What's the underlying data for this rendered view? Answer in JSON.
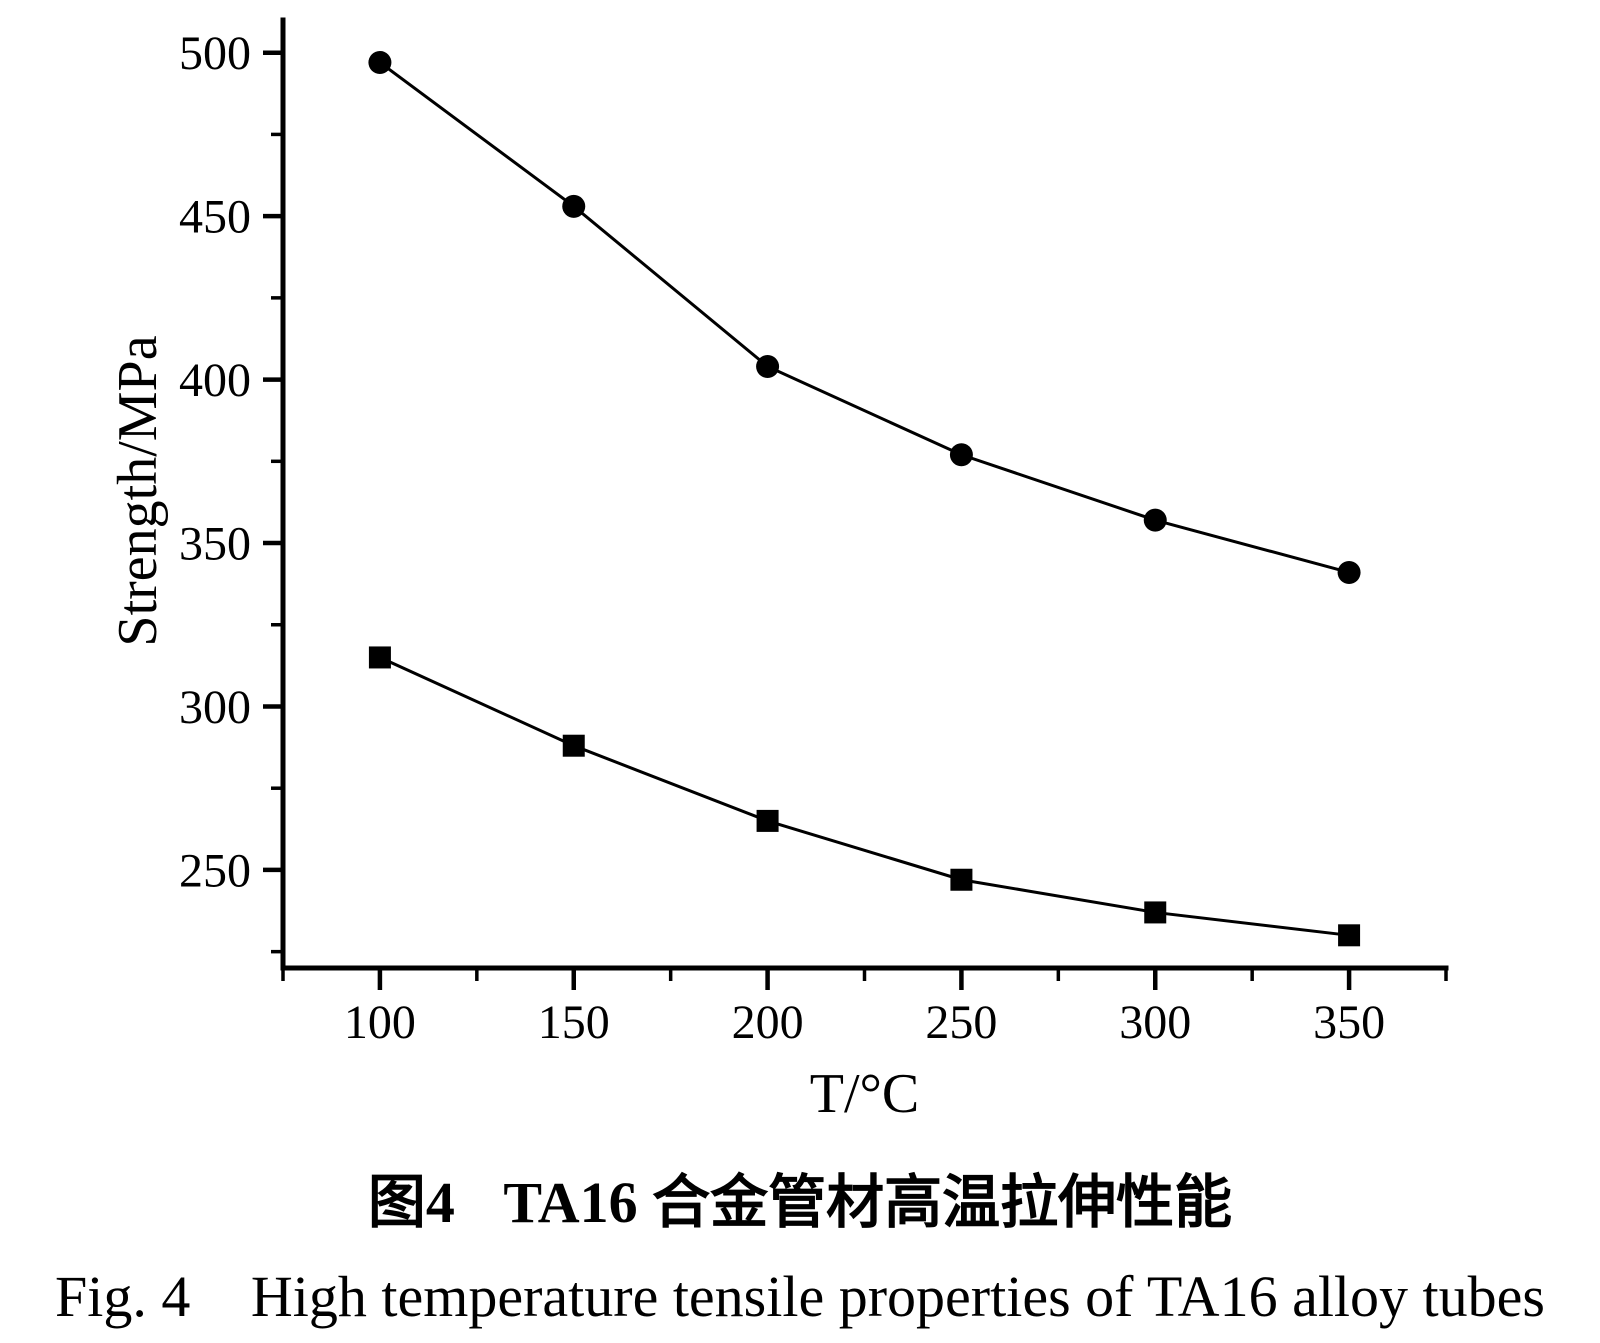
{
  "page": {
    "background": "#ffffff",
    "ink_color": "#000000"
  },
  "chart_data": {
    "type": "line",
    "title": "",
    "xlabel": "T/°C",
    "ylabel": "Strength/MPa",
    "x": [
      100,
      150,
      200,
      250,
      300,
      350
    ],
    "series": [
      {
        "marker": "circle",
        "values": [
          497,
          453,
          404,
          377,
          357,
          341
        ]
      },
      {
        "marker": "square",
        "values": [
          315,
          288,
          265,
          247,
          237,
          230
        ]
      }
    ],
    "xlim": [
      75,
      375
    ],
    "ylim": [
      220,
      510
    ],
    "x_major_ticks": [
      100,
      150,
      200,
      250,
      300,
      350
    ],
    "y_major_ticks": [
      250,
      300,
      350,
      400,
      450,
      500
    ],
    "minor_tick_step": 25,
    "grid": false,
    "legend": "none",
    "line_color": "#000000",
    "marker_color": "#000000",
    "tick_direction": "out"
  },
  "captions": {
    "zh_label": "图4",
    "zh_text": "TA16 合金管材高温拉伸性能",
    "en_label": "Fig. 4",
    "en_text": "High temperature tensile properties of TA16 alloy tubes"
  }
}
